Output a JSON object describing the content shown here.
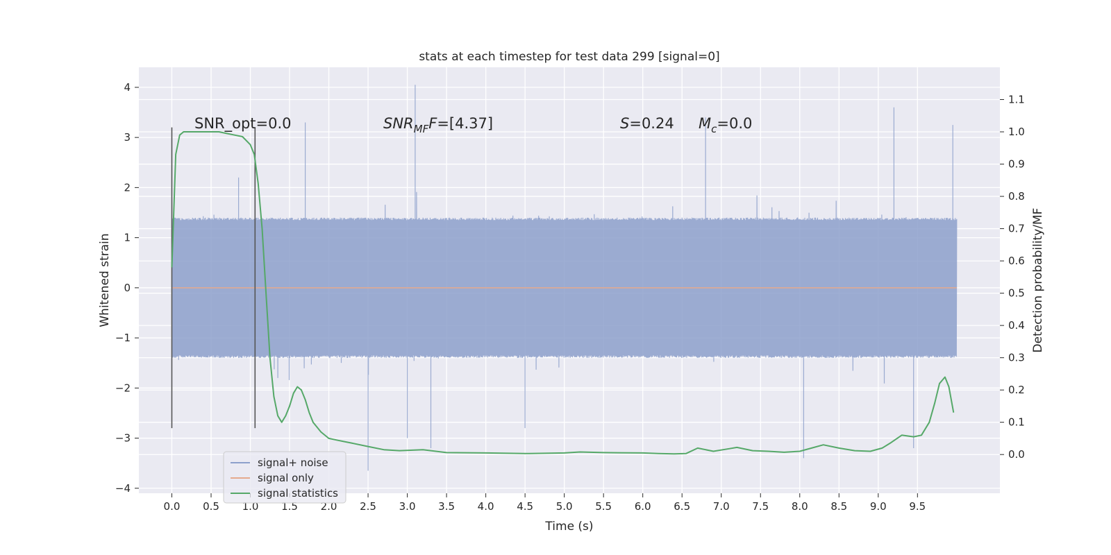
{
  "chart_data": {
    "type": "line",
    "title": "stats at each timestep for test data 299 [signal=0]",
    "xlabel": "Time (s)",
    "ylabel": "Whitened strain",
    "y2label": "Detection probability/MF",
    "xlim": [
      -0.42,
      10.55
    ],
    "ylim": [
      -4.1,
      4.4
    ],
    "y2lim": [
      -0.12,
      1.2
    ],
    "x_ticks": [
      0.0,
      0.5,
      1.0,
      1.5,
      2.0,
      2.5,
      3.0,
      3.5,
      4.0,
      4.5,
      5.0,
      5.5,
      6.0,
      6.5,
      7.0,
      7.5,
      8.0,
      8.5,
      9.0,
      9.5
    ],
    "x_tick_labels": [
      "0.0",
      "0.5",
      "1.0",
      "1.5",
      "2.0",
      "2.5",
      "3.0",
      "3.5",
      "4.0",
      "4.5",
      "5.0",
      "5.5",
      "6.0",
      "6.5",
      "7.0",
      "7.5",
      "8.0",
      "8.5",
      "9.0",
      "9.5"
    ],
    "y_ticks": [
      -4,
      -3,
      -2,
      -1,
      0,
      1,
      2,
      3,
      4
    ],
    "y_tick_labels": [
      "−4",
      "−3",
      "−2",
      "−1",
      "0",
      "1",
      "2",
      "3",
      "4"
    ],
    "y2_ticks": [
      0.0,
      0.1,
      0.2,
      0.3,
      0.4,
      0.5,
      0.6,
      0.7,
      0.8,
      0.9,
      1.0,
      1.1
    ],
    "y2_tick_labels": [
      "0.0",
      "0.1",
      "0.2",
      "0.3",
      "0.4",
      "0.5",
      "0.6",
      "0.7",
      "0.8",
      "0.9",
      "1.0",
      "1.1"
    ],
    "grid": true,
    "legend_position": "lower-left",
    "legend": [
      {
        "label": "signal+ noise",
        "color": "#8da0cb"
      },
      {
        "label": "signal only",
        "color": "#e5a98d"
      },
      {
        "label": "signal statistics",
        "color": "#55a868"
      }
    ],
    "annotations": {
      "snr_opt": "SNR_opt=0.0",
      "snr_mf_main": "SNR",
      "snr_mf_sub": "MF",
      "snr_mf_value": "=[4.37]",
      "s_symbol": "S",
      "s_value": "=0.24",
      "mc_symbol": "M",
      "mc_sub": "c",
      "mc_value": "=0.0"
    },
    "vertical_markers": [
      {
        "x": 0.0,
        "y_range": [
          -2.8,
          3.2
        ]
      },
      {
        "x": 1.06,
        "y_range": [
          -2.8,
          3.2
        ]
      }
    ],
    "series": [
      {
        "name": "signal+ noise",
        "axis": "left",
        "color": "#8da0cb",
        "x_range": [
          0.0,
          10.0
        ],
        "envelope": {
          "upper_typical": 1.4,
          "lower_typical": -1.4
        },
        "peaks": [
          [
            0.85,
            2.2
          ],
          [
            1.7,
            3.3
          ],
          [
            3.1,
            4.05
          ],
          [
            3.3,
            -3.2
          ],
          [
            2.5,
            -3.65
          ],
          [
            3.0,
            -3.0
          ],
          [
            4.5,
            -2.8
          ],
          [
            6.8,
            3.4
          ],
          [
            8.05,
            -3.4
          ],
          [
            9.45,
            -3.2
          ],
          [
            9.2,
            3.6
          ],
          [
            9.95,
            3.25
          ]
        ]
      },
      {
        "name": "signal only",
        "axis": "left",
        "color": "#e5a98d",
        "x": [
          0.0,
          10.0
        ],
        "y": [
          0.0,
          0.0
        ]
      },
      {
        "name": "signal statistics",
        "axis": "right",
        "color": "#55a868",
        "x": [
          0.0,
          0.05,
          0.1,
          0.15,
          0.2,
          0.3,
          0.4,
          0.5,
          0.6,
          0.7,
          0.8,
          0.9,
          1.0,
          1.05,
          1.1,
          1.15,
          1.2,
          1.25,
          1.3,
          1.35,
          1.4,
          1.45,
          1.5,
          1.55,
          1.6,
          1.65,
          1.7,
          1.75,
          1.8,
          1.9,
          2.0,
          2.1,
          2.2,
          2.3,
          2.5,
          2.7,
          2.9,
          3.2,
          3.5,
          4.0,
          4.5,
          5.0,
          5.2,
          5.5,
          6.0,
          6.2,
          6.4,
          6.55,
          6.7,
          6.9,
          7.1,
          7.2,
          7.4,
          7.6,
          7.8,
          8.0,
          8.15,
          8.3,
          8.5,
          8.7,
          8.9,
          9.05,
          9.15,
          9.3,
          9.45,
          9.55,
          9.65,
          9.72,
          9.78,
          9.85,
          9.9,
          9.96
        ],
        "y": [
          0.58,
          0.93,
          0.99,
          1.0,
          1.0,
          1.0,
          1.0,
          1.0,
          1.0,
          0.995,
          0.99,
          0.985,
          0.96,
          0.93,
          0.84,
          0.7,
          0.5,
          0.3,
          0.18,
          0.12,
          0.1,
          0.12,
          0.15,
          0.19,
          0.21,
          0.2,
          0.17,
          0.13,
          0.1,
          0.07,
          0.05,
          0.045,
          0.04,
          0.035,
          0.025,
          0.015,
          0.012,
          0.015,
          0.006,
          0.005,
          0.003,
          0.005,
          0.008,
          0.006,
          0.005,
          0.003,
          0.002,
          0.003,
          0.02,
          0.01,
          0.018,
          0.022,
          0.012,
          0.01,
          0.007,
          0.01,
          0.02,
          0.03,
          0.02,
          0.012,
          0.01,
          0.02,
          0.035,
          0.06,
          0.055,
          0.06,
          0.1,
          0.16,
          0.22,
          0.24,
          0.21,
          0.13
        ]
      }
    ]
  }
}
